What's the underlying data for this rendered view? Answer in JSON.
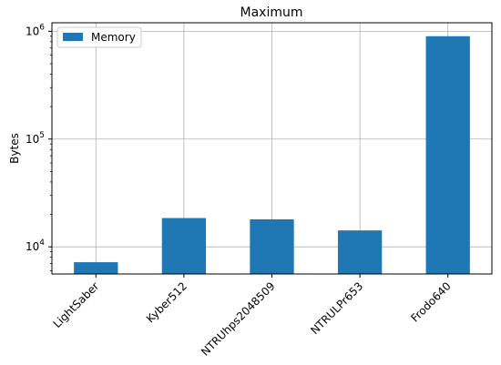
{
  "chart_data": {
    "type": "bar",
    "title": "Maximum",
    "ylabel": "Bytes",
    "xlabel": "",
    "yscale": "log",
    "ylim": [
      5600,
      1200000
    ],
    "grid": true,
    "legend_position": "top-left",
    "categories": [
      "LightSaber",
      "Kyber512",
      "NTRUhps2048509",
      "NTRULPr653",
      "Frodo640"
    ],
    "series": [
      {
        "name": "Memory",
        "color": "#1f77b4",
        "values": [
          7200,
          18500,
          18000,
          14200,
          900000
        ]
      }
    ],
    "yticks": [
      {
        "value": 10000,
        "base": "10",
        "exp": "4"
      },
      {
        "value": 100000,
        "base": "10",
        "exp": "5"
      },
      {
        "value": 1000000,
        "base": "10",
        "exp": "6"
      }
    ]
  }
}
